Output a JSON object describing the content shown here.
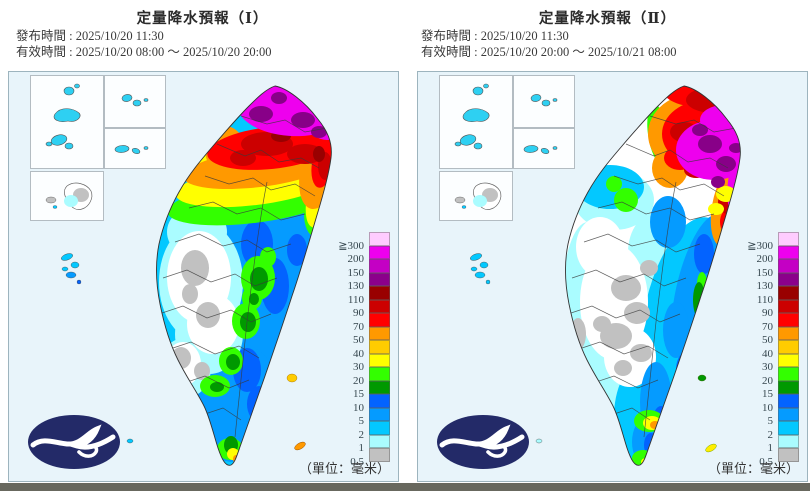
{
  "panels": [
    {
      "title": "定量降水預報（Ⅰ）",
      "issue_line": "發布時間 : 2025/10/20 11:30",
      "valid_line": "有效時間 : 2025/10/20 08:00 ～ 2025/10/20 20:00",
      "unit_note": "（單位：毫米）"
    },
    {
      "title": "定量降水預報（Ⅱ）",
      "issue_line": "發布時間 : 2025/10/20 11:30",
      "valid_line": "有效時間 : 2025/10/20 20:00 ～ 2025/10/21 08:00",
      "unit_note": "（單位：毫米）"
    }
  ],
  "legend": {
    "unit": "毫米",
    "entries": [
      {
        "label": "≧300",
        "color": "#ffccff"
      },
      {
        "label": "200",
        "color": "#ee00ee"
      },
      {
        "label": "150",
        "color": "#c400c4"
      },
      {
        "label": "130",
        "color": "#8b008b"
      },
      {
        "label": "110",
        "color": "#990000"
      },
      {
        "label": "90",
        "color": "#cc0000"
      },
      {
        "label": "70",
        "color": "#ff0000"
      },
      {
        "label": "50",
        "color": "#ff9900"
      },
      {
        "label": "40",
        "color": "#ffcc00"
      },
      {
        "label": "30",
        "color": "#ffff00"
      },
      {
        "label": "20",
        "color": "#33ff00"
      },
      {
        "label": "15",
        "color": "#009900"
      },
      {
        "label": "10",
        "color": "#0363ff"
      },
      {
        "label": "5",
        "color": "#059bff"
      },
      {
        "label": "2",
        "color": "#03c8ff"
      },
      {
        "label": "1",
        "color": "#aafcff"
      },
      {
        "label": "0.5",
        "color": "#c1c1c1"
      }
    ]
  },
  "logo": {
    "name": "CWA 中央氣象署",
    "bg_color": "#232a68"
  },
  "map_background": "#e8f4fa"
}
